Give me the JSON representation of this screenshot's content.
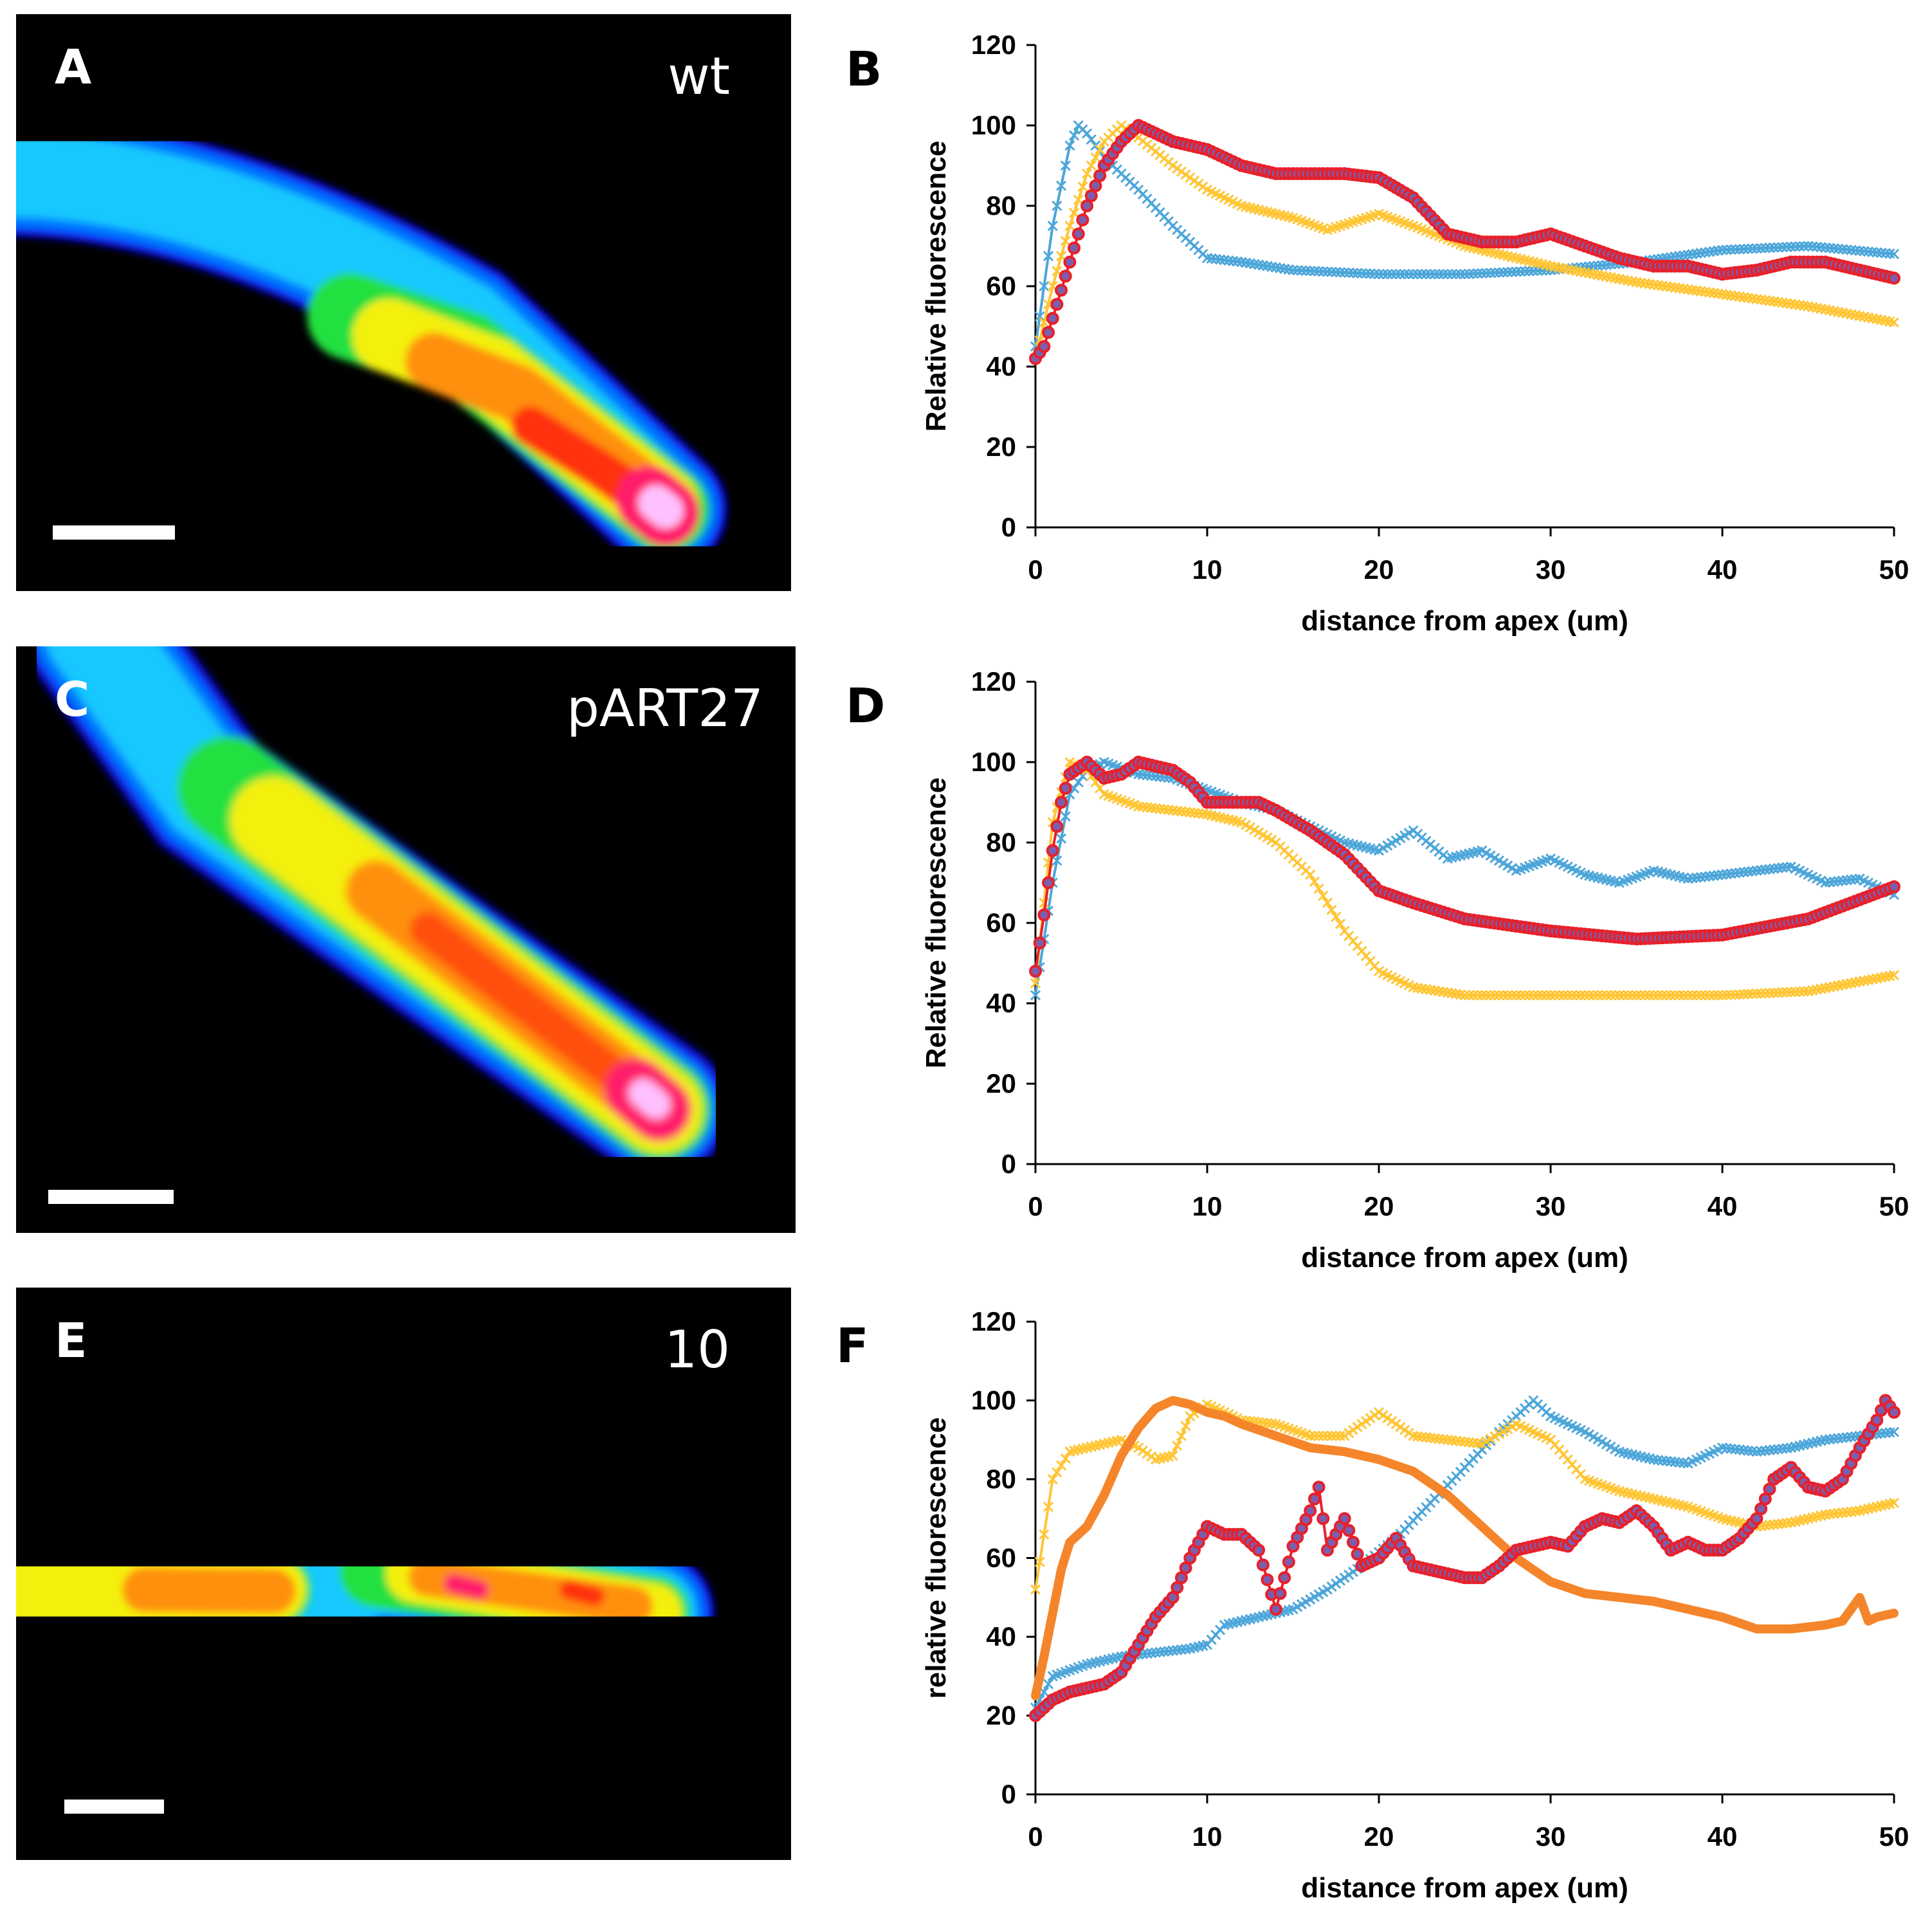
{
  "micrographs": [
    {
      "letter": "A",
      "label": "wt"
    },
    {
      "letter": "C",
      "label": "pART27"
    },
    {
      "letter": "E",
      "label": "10"
    }
  ],
  "chart_data": [
    {
      "panel": "B",
      "type": "line",
      "xlabel": "distance from apex (um)",
      "ylabel": "Relative fluorescence",
      "xlim": [
        0,
        50
      ],
      "ylim": [
        0,
        120
      ],
      "xticks": [
        0,
        10,
        20,
        30,
        40,
        50
      ],
      "yticks": [
        0,
        20,
        40,
        60,
        80,
        100,
        120
      ],
      "grid": false,
      "series": [
        {
          "color": "#4da6d9",
          "marker": "x",
          "x": [
            0,
            1,
            2,
            2.5,
            3,
            4,
            5,
            6,
            8,
            10,
            12,
            15,
            20,
            25,
            30,
            35,
            40,
            45,
            50
          ],
          "y": [
            45,
            75,
            95,
            100,
            98,
            92,
            88,
            84,
            75,
            67,
            66,
            64,
            63,
            63,
            64,
            66,
            69,
            70,
            68
          ]
        },
        {
          "color": "#ffc533",
          "marker": "x",
          "x": [
            0,
            1,
            2,
            3,
            4,
            5,
            6,
            8,
            10,
            12,
            15,
            17,
            20,
            22,
            25,
            30,
            35,
            40,
            45,
            50
          ],
          "y": [
            42,
            60,
            75,
            88,
            96,
            100,
            97,
            90,
            84,
            80,
            77,
            74,
            78,
            75,
            70,
            65,
            61,
            58,
            55,
            51
          ]
        },
        {
          "color": "#e8202a",
          "marker": "o",
          "marker_fill": "#7a5fae",
          "x": [
            0,
            0.5,
            1,
            2,
            3,
            4,
            5,
            6,
            7,
            8,
            9,
            10,
            11,
            12,
            14,
            16,
            18,
            20,
            22,
            24,
            26,
            28,
            30,
            32,
            34,
            36,
            38,
            40,
            42,
            44,
            46,
            48,
            50
          ],
          "y": [
            42,
            45,
            52,
            66,
            80,
            90,
            96,
            100,
            98,
            96,
            95,
            94,
            92,
            90,
            88,
            88,
            88,
            87,
            82,
            73,
            71,
            71,
            73,
            70,
            67,
            65,
            65,
            63,
            64,
            66,
            66,
            64,
            62
          ]
        }
      ]
    },
    {
      "panel": "D",
      "type": "line",
      "xlabel": "distance from apex (um)",
      "ylabel": "Relative fluorescence",
      "xlim": [
        0,
        50
      ],
      "ylim": [
        0,
        120
      ],
      "xticks": [
        0,
        10,
        20,
        30,
        40,
        50
      ],
      "yticks": [
        0,
        20,
        40,
        60,
        80,
        100,
        120
      ],
      "grid": false,
      "series": [
        {
          "color": "#4da6d9",
          "marker": "x",
          "x": [
            0,
            1,
            2,
            3,
            4,
            6,
            8,
            10,
            12,
            14,
            16,
            18,
            20,
            22,
            24,
            26,
            28,
            30,
            32,
            34,
            36,
            38,
            40,
            42,
            44,
            46,
            48,
            50
          ],
          "y": [
            42,
            70,
            92,
            98,
            100,
            97,
            96,
            93,
            90,
            88,
            84,
            80,
            78,
            83,
            76,
            78,
            73,
            76,
            72,
            70,
            73,
            71,
            72,
            73,
            74,
            70,
            71,
            67
          ]
        },
        {
          "color": "#ffc533",
          "marker": "x",
          "x": [
            0,
            1,
            2,
            3,
            4,
            6,
            8,
            10,
            12,
            14,
            16,
            18,
            20,
            22,
            25,
            30,
            35,
            40,
            45,
            50
          ],
          "y": [
            45,
            85,
            100,
            98,
            92,
            89,
            88,
            87,
            85,
            80,
            72,
            58,
            48,
            44,
            42,
            42,
            42,
            42,
            43,
            47
          ]
        },
        {
          "color": "#e8202a",
          "marker": "o",
          "marker_fill": "#7a5fae",
          "x": [
            0,
            0.5,
            1,
            1.5,
            2,
            3,
            4,
            5,
            6,
            7,
            8,
            9,
            10,
            12,
            13,
            14,
            16,
            18,
            20,
            22,
            25,
            30,
            35,
            40,
            45,
            50
          ],
          "y": [
            48,
            62,
            78,
            90,
            97,
            100,
            96,
            97,
            100,
            99,
            98,
            95,
            90,
            90,
            90,
            88,
            83,
            77,
            68,
            65,
            61,
            58,
            56,
            57,
            61,
            69
          ]
        }
      ]
    },
    {
      "panel": "F",
      "type": "line",
      "xlabel": "distance from apex (um)",
      "ylabel": "relative fluorescence",
      "xlim": [
        0,
        50
      ],
      "ylim": [
        0,
        120
      ],
      "xticks": [
        0,
        10,
        20,
        30,
        40,
        50
      ],
      "yticks": [
        0,
        20,
        40,
        60,
        80,
        100,
        120
      ],
      "grid": false,
      "series": [
        {
          "color": "#4da6d9",
          "marker": "x",
          "x": [
            0,
            1,
            3,
            5,
            7,
            9,
            10,
            11,
            13,
            15,
            17,
            19,
            21,
            23,
            25,
            27,
            29,
            30,
            32,
            34,
            36,
            38,
            40,
            42,
            44,
            46,
            48,
            50
          ],
          "y": [
            22,
            30,
            33,
            35,
            36,
            37,
            38,
            43,
            45,
            47,
            52,
            58,
            65,
            74,
            83,
            92,
            100,
            96,
            92,
            87,
            85,
            84,
            88,
            87,
            88,
            90,
            91,
            92
          ]
        },
        {
          "color": "#ffc533",
          "marker": "x",
          "x": [
            0,
            1,
            2,
            3,
            4,
            5,
            6,
            7,
            8,
            9,
            10,
            11,
            12,
            14,
            16,
            18,
            20,
            22,
            24,
            26,
            28,
            30,
            32,
            34,
            36,
            38,
            40,
            42,
            44,
            46,
            48,
            50
          ],
          "y": [
            52,
            80,
            87,
            88,
            89,
            90,
            88,
            85,
            86,
            96,
            99,
            97,
            95,
            94,
            91,
            91,
            97,
            91,
            90,
            89,
            94,
            90,
            80,
            77,
            75,
            73,
            70,
            68,
            69,
            71,
            72,
            74
          ]
        },
        {
          "color": "#f5852a",
          "marker": "none",
          "width": 14,
          "x": [
            0,
            0.5,
            1,
            1.5,
            2,
            3,
            4,
            5,
            6,
            7,
            8,
            9,
            10,
            11,
            12,
            14,
            16,
            18,
            20,
            22,
            24,
            26,
            28,
            30,
            32,
            34,
            36,
            38,
            40,
            42,
            44,
            46,
            47,
            48,
            48.5,
            49,
            50
          ],
          "y": [
            25,
            35,
            46,
            57,
            64,
            68,
            76,
            86,
            93,
            98,
            100,
            99,
            97,
            96,
            94,
            91,
            88,
            87,
            85,
            82,
            76,
            68,
            60,
            54,
            51,
            50,
            49,
            47,
            45,
            42,
            42,
            43,
            44,
            50,
            44,
            45,
            46
          ]
        },
        {
          "color": "#e8202a",
          "marker": "o",
          "marker_fill": "#7a5fae",
          "x": [
            0,
            1,
            2,
            3,
            4,
            5,
            6,
            7,
            8,
            9,
            10,
            11,
            12,
            13,
            14,
            15,
            16,
            16.5,
            17,
            18,
            19,
            20,
            21,
            22,
            23,
            24,
            25,
            26,
            27,
            28,
            29,
            30,
            31,
            32,
            33,
            34,
            35,
            36,
            37,
            38,
            39,
            40,
            41,
            42,
            43,
            44,
            45,
            46,
            47,
            48,
            49,
            49.5,
            50
          ],
          "y": [
            20,
            24,
            26,
            27,
            28,
            31,
            38,
            45,
            50,
            60,
            68,
            66,
            66,
            62,
            47,
            63,
            72,
            78,
            62,
            70,
            58,
            60,
            65,
            58,
            57,
            56,
            55,
            55,
            58,
            62,
            63,
            64,
            63,
            68,
            70,
            69,
            72,
            68,
            62,
            64,
            62,
            62,
            65,
            70,
            80,
            83,
            78,
            77,
            80,
            88,
            95,
            100,
            97
          ]
        }
      ]
    }
  ]
}
